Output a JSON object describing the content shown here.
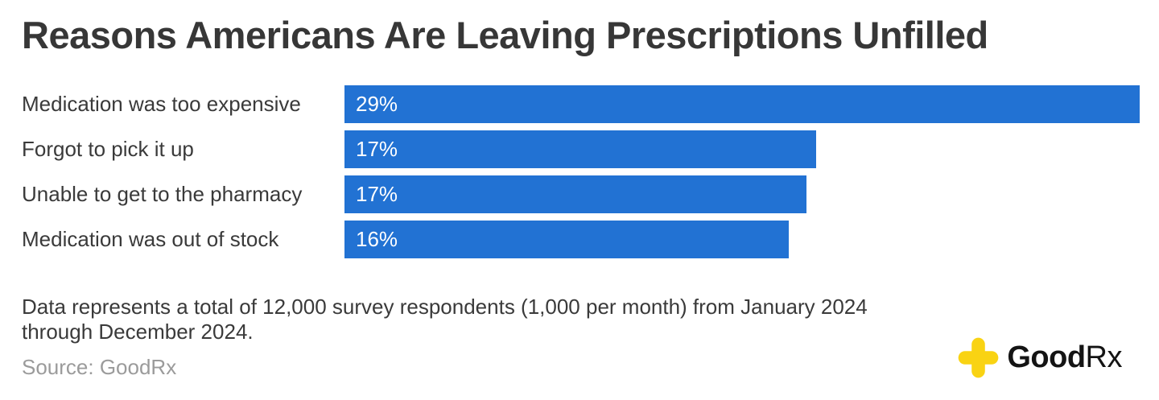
{
  "chart": {
    "title": "Reasons Americans Are Leaving Prescriptions Unfilled"
  },
  "chart_data": {
    "type": "bar",
    "orientation": "horizontal",
    "title": "Reasons Americans Are Leaving Prescriptions Unfilled",
    "categories": [
      "Medication was too expensive",
      "Forgot to pick it up",
      "Unable to get to the pharmacy",
      "Medication was out of stock"
    ],
    "values": [
      29,
      17,
      17,
      16
    ],
    "value_labels": [
      "29%",
      "17%",
      "17%",
      "16%"
    ],
    "bar_length_fractions": [
      1.0,
      0.593,
      0.581,
      0.559
    ],
    "xlabel": "",
    "ylabel": "",
    "xlim": [
      0,
      29
    ],
    "grid": false,
    "legend": false,
    "bar_color": "#2272D3",
    "value_label_color": "#FFFFFF"
  },
  "footer": {
    "note_line1": "Data represents a total of 12,000 survey respondents (1,000 per month) from January 2024",
    "note_line2": "through December 2024.",
    "source": "Source: GoodRx"
  },
  "logo": {
    "name": "GoodRx",
    "wordmark_bold": "Good",
    "wordmark_regular": "Rx",
    "cross_color": "#F9D313",
    "text_color": "#141414"
  },
  "colors": {
    "background": "#FFFFFF",
    "bar_blue": "#2272D3",
    "text_dark": "#3A3A3A",
    "text_gray": "#9B9B9B"
  }
}
